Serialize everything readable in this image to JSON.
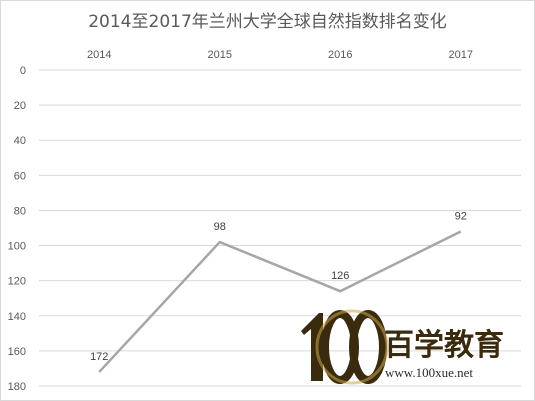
{
  "chart_data": {
    "type": "line",
    "title": "2014至2017年兰州大学全球自然指数排名变化",
    "categories": [
      "2014",
      "2015",
      "2016",
      "2017"
    ],
    "series": [
      {
        "values": [
          172,
          98,
          126,
          92
        ],
        "color": "#a6a6a6"
      }
    ],
    "y_ticks": [
      0,
      20,
      40,
      60,
      80,
      100,
      120,
      140,
      160,
      180
    ],
    "ylim": [
      0,
      180
    ],
    "y_reversed": true,
    "x_axis_position": "top",
    "grid": true,
    "xlabel": "",
    "ylabel": ""
  },
  "watermark": {
    "logo_digits": "100",
    "brand_cn": "百学教育",
    "site": "www.100xue.net",
    "color": "#3a2a0e"
  }
}
